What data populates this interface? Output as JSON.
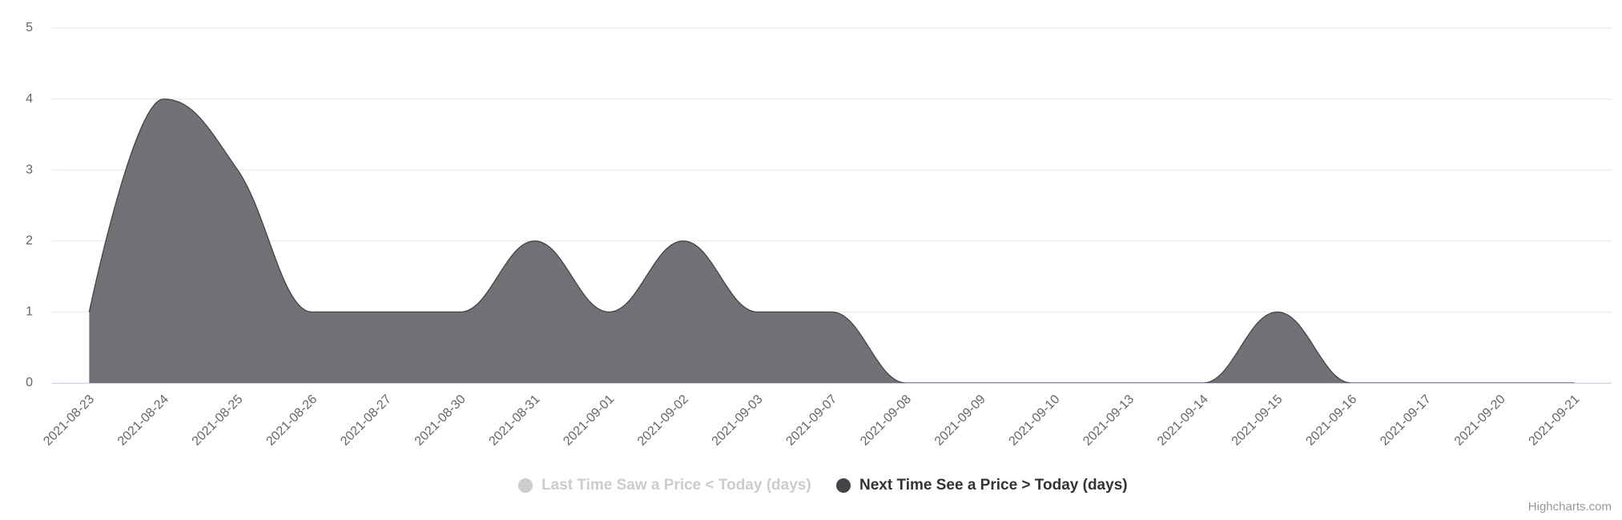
{
  "chart_data": {
    "type": "areaspline",
    "categories": [
      "2021-08-23",
      "2021-08-24",
      "2021-08-25",
      "2021-08-26",
      "2021-08-27",
      "2021-08-30",
      "2021-08-31",
      "2021-09-01",
      "2021-09-02",
      "2021-09-03",
      "2021-09-07",
      "2021-09-08",
      "2021-09-09",
      "2021-09-10",
      "2021-09-13",
      "2021-09-14",
      "2021-09-15",
      "2021-09-16",
      "2021-09-17",
      "2021-09-20",
      "2021-09-21"
    ],
    "series": [
      {
        "name": "Last Time Saw a Price < Today (days)",
        "color": "#cccccc",
        "visible": false
      },
      {
        "name": "Next Time See a Price > Today (days)",
        "color": "#434348",
        "visible": true,
        "values": [
          1,
          4,
          3,
          1,
          1,
          1,
          2,
          1,
          2,
          1,
          1,
          0,
          0,
          0,
          0,
          0,
          1,
          0,
          0,
          0,
          0
        ]
      }
    ],
    "ylim": [
      0,
      5
    ],
    "yticks": [
      0,
      1,
      2,
      3,
      4,
      5
    ],
    "grid": true,
    "legend": "bottom",
    "credits": "Highcharts.com"
  }
}
